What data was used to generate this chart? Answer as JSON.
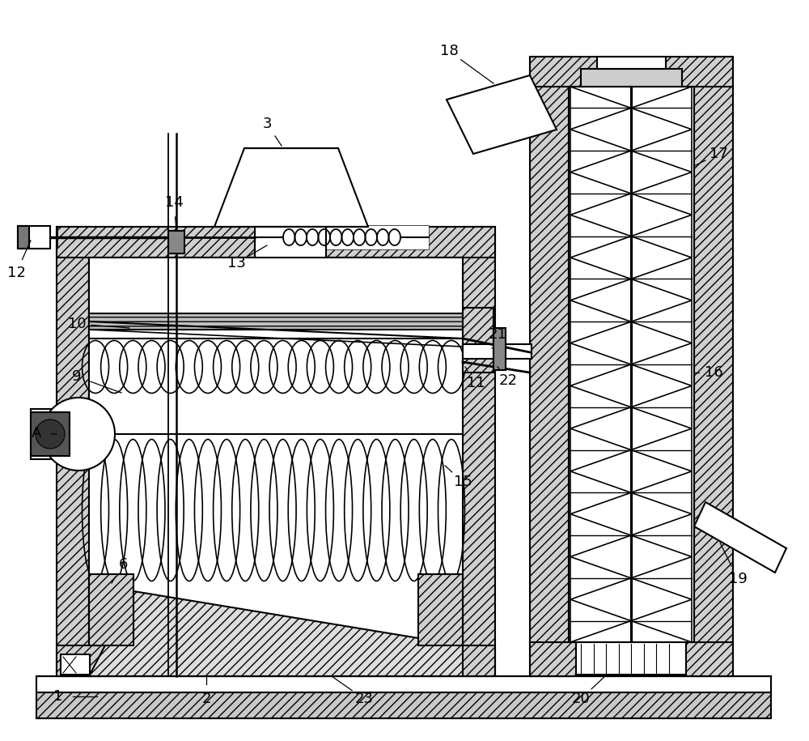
{
  "bg_color": "#ffffff",
  "lc": "#000000",
  "lw": 1.5,
  "hatch_fc": "#d0d0d0",
  "label_fs": 13,
  "figw": 10.0,
  "figh": 9.15,
  "dpi": 100
}
